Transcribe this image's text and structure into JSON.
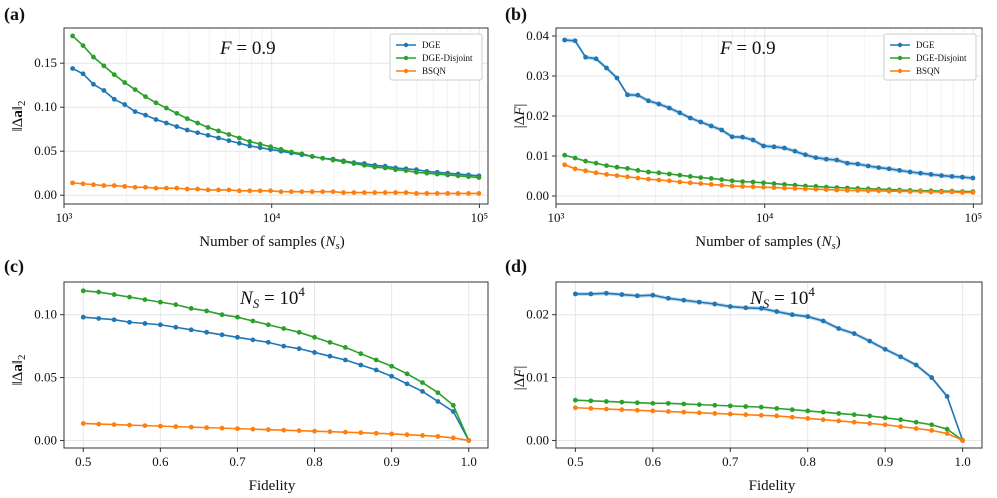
{
  "colors": {
    "DGE": "#1f77b4",
    "DGE-Disjoint": "#2ca02c",
    "BSQN": "#ff7f0e",
    "grid": "#e6e6e6",
    "band": "#aecde8"
  },
  "chart_data": [
    {
      "panel": "(a)",
      "type": "line",
      "annotation": "F = 0.9",
      "xlabel": "Number of samples (N_s)",
      "ylabel": "‖Δa‖₂",
      "xscale": "log",
      "xlim": [
        1000,
        110000
      ],
      "ylim": [
        -0.01,
        0.19
      ],
      "xticks": [
        {
          "v": 1000,
          "t": "10³"
        },
        {
          "v": 10000,
          "t": "10⁴"
        },
        {
          "v": 100000,
          "t": "10⁵"
        }
      ],
      "yticks": [
        {
          "v": 0,
          "t": "0.00"
        },
        {
          "v": 0.05,
          "t": "0.05"
        },
        {
          "v": 0.1,
          "t": "0.10"
        },
        {
          "v": 0.15,
          "t": "0.15"
        }
      ],
      "legend": "top-right",
      "grid": true,
      "x": [
        1100,
        1235,
        1386,
        1556,
        1746,
        1960,
        2200,
        2469,
        2772,
        3111,
        3492,
        3920,
        4399,
        4938,
        5543,
        6222,
        6983,
        7838,
        8798,
        9875,
        11084,
        12441,
        13964,
        15674,
        17593,
        19747,
        22164,
        24878,
        27924,
        31343,
        35180,
        39487,
        44322,
        49748,
        55839,
        62675,
        70349,
        78962,
        88630,
        99480
      ],
      "series": [
        {
          "name": "DGE",
          "values": [
            0.144,
            0.138,
            0.126,
            0.119,
            0.109,
            0.103,
            0.095,
            0.091,
            0.086,
            0.082,
            0.078,
            0.074,
            0.071,
            0.068,
            0.065,
            0.062,
            0.059,
            0.056,
            0.054,
            0.052,
            0.05,
            0.048,
            0.046,
            0.044,
            0.042,
            0.041,
            0.039,
            0.037,
            0.036,
            0.034,
            0.033,
            0.031,
            0.03,
            0.029,
            0.027,
            0.026,
            0.025,
            0.024,
            0.023,
            0.022
          ]
        },
        {
          "name": "DGE-Disjoint",
          "values": [
            0.181,
            0.17,
            0.157,
            0.147,
            0.137,
            0.128,
            0.12,
            0.112,
            0.105,
            0.099,
            0.093,
            0.087,
            0.082,
            0.077,
            0.073,
            0.069,
            0.065,
            0.061,
            0.058,
            0.055,
            0.052,
            0.049,
            0.047,
            0.044,
            0.042,
            0.04,
            0.038,
            0.036,
            0.034,
            0.032,
            0.031,
            0.029,
            0.028,
            0.026,
            0.025,
            0.024,
            0.023,
            0.022,
            0.021,
            0.02
          ]
        },
        {
          "name": "BSQN",
          "values": [
            0.014,
            0.013,
            0.012,
            0.011,
            0.011,
            0.01,
            0.009,
            0.009,
            0.008,
            0.008,
            0.008,
            0.007,
            0.007,
            0.006,
            0.006,
            0.006,
            0.005,
            0.005,
            0.005,
            0.005,
            0.004,
            0.004,
            0.004,
            0.004,
            0.004,
            0.004,
            0.003,
            0.003,
            0.003,
            0.003,
            0.003,
            0.003,
            0.003,
            0.002,
            0.002,
            0.002,
            0.002,
            0.002,
            0.002,
            0.002
          ]
        }
      ]
    },
    {
      "panel": "(b)",
      "type": "line",
      "annotation": "F = 0.9",
      "xlabel": "Number of samples (N_s)",
      "ylabel": "|ΔF|",
      "xscale": "log",
      "xlim": [
        1000,
        110000
      ],
      "ylim": [
        -0.002,
        0.042
      ],
      "xticks": [
        {
          "v": 1000,
          "t": "10³"
        },
        {
          "v": 10000,
          "t": "10⁴"
        },
        {
          "v": 100000,
          "t": "10⁵"
        }
      ],
      "yticks": [
        {
          "v": 0,
          "t": "0.00"
        },
        {
          "v": 0.01,
          "t": "0.01"
        },
        {
          "v": 0.02,
          "t": "0.02"
        },
        {
          "v": 0.03,
          "t": "0.03"
        },
        {
          "v": 0.04,
          "t": "0.04"
        }
      ],
      "legend": "top-right",
      "grid": true,
      "x": [
        1100,
        1235,
        1386,
        1556,
        1746,
        1960,
        2200,
        2469,
        2772,
        3111,
        3492,
        3920,
        4399,
        4938,
        5543,
        6222,
        6983,
        7838,
        8798,
        9875,
        11084,
        12441,
        13964,
        15674,
        17593,
        19747,
        22164,
        24878,
        27924,
        31343,
        35180,
        39487,
        44322,
        49748,
        55839,
        62675,
        70349,
        78962,
        88630,
        99480
      ],
      "series": [
        {
          "name": "DGE",
          "band": true,
          "values": [
            0.039,
            0.0388,
            0.0347,
            0.0343,
            0.032,
            0.0295,
            0.0253,
            0.0252,
            0.0238,
            0.023,
            0.022,
            0.0208,
            0.0195,
            0.0185,
            0.0175,
            0.0165,
            0.0148,
            0.0147,
            0.014,
            0.0125,
            0.0123,
            0.012,
            0.0112,
            0.0103,
            0.0096,
            0.0092,
            0.009,
            0.0082,
            0.008,
            0.0075,
            0.0071,
            0.0068,
            0.0064,
            0.006,
            0.0057,
            0.0054,
            0.0051,
            0.0049,
            0.0047,
            0.0045
          ]
        },
        {
          "name": "DGE-Disjoint",
          "values": [
            0.0102,
            0.0095,
            0.0087,
            0.0082,
            0.0076,
            0.0072,
            0.0069,
            0.0064,
            0.006,
            0.0058,
            0.0055,
            0.0052,
            0.0049,
            0.0046,
            0.0044,
            0.0041,
            0.0038,
            0.0036,
            0.0035,
            0.0033,
            0.0031,
            0.0029,
            0.0027,
            0.0025,
            0.0024,
            0.0022,
            0.0021,
            0.002,
            0.0019,
            0.0018,
            0.0017,
            0.0016,
            0.0015,
            0.0014,
            0.0013,
            0.0013,
            0.0012,
            0.0012,
            0.0011,
            0.0011
          ]
        },
        {
          "name": "BSQN",
          "values": [
            0.0078,
            0.0068,
            0.0063,
            0.0058,
            0.0054,
            0.0051,
            0.0048,
            0.0045,
            0.0042,
            0.004,
            0.0038,
            0.0035,
            0.0033,
            0.0031,
            0.0029,
            0.0027,
            0.0025,
            0.0024,
            0.0023,
            0.0022,
            0.0021,
            0.002,
            0.0019,
            0.0018,
            0.0017,
            0.0016,
            0.0015,
            0.0014,
            0.0014,
            0.0013,
            0.0013,
            0.0012,
            0.0012,
            0.0011,
            0.0011,
            0.001,
            0.001,
            0.001,
            0.0009,
            0.0009
          ]
        }
      ]
    },
    {
      "panel": "(c)",
      "type": "line",
      "annotation": "N_S = 10^4",
      "xlabel": "Fidelity",
      "ylabel": "‖Δa‖₂",
      "xscale": "linear",
      "xlim": [
        0.475,
        1.025
      ],
      "ylim": [
        -0.006,
        0.126
      ],
      "xticks": [
        {
          "v": 0.5,
          "t": "0.5"
        },
        {
          "v": 0.6,
          "t": "0.6"
        },
        {
          "v": 0.7,
          "t": "0.7"
        },
        {
          "v": 0.8,
          "t": "0.8"
        },
        {
          "v": 0.9,
          "t": "0.9"
        },
        {
          "v": 1.0,
          "t": "1.0"
        }
      ],
      "yticks": [
        {
          "v": 0,
          "t": "0.00"
        },
        {
          "v": 0.05,
          "t": "0.05"
        },
        {
          "v": 0.1,
          "t": "0.10"
        }
      ],
      "grid": true,
      "x": [
        0.5,
        0.52,
        0.54,
        0.56,
        0.58,
        0.6,
        0.62,
        0.64,
        0.66,
        0.68,
        0.7,
        0.72,
        0.74,
        0.76,
        0.78,
        0.8,
        0.82,
        0.84,
        0.86,
        0.88,
        0.9,
        0.92,
        0.94,
        0.96,
        0.98,
        1.0
      ],
      "series": [
        {
          "name": "DGE",
          "values": [
            0.098,
            0.097,
            0.096,
            0.094,
            0.093,
            0.092,
            0.09,
            0.088,
            0.086,
            0.084,
            0.082,
            0.08,
            0.078,
            0.075,
            0.073,
            0.07,
            0.067,
            0.064,
            0.06,
            0.056,
            0.051,
            0.045,
            0.039,
            0.031,
            0.023,
            0.0
          ]
        },
        {
          "name": "DGE-Disjoint",
          "values": [
            0.119,
            0.118,
            0.116,
            0.114,
            0.112,
            0.11,
            0.108,
            0.105,
            0.103,
            0.1,
            0.098,
            0.095,
            0.092,
            0.089,
            0.086,
            0.082,
            0.078,
            0.074,
            0.069,
            0.064,
            0.059,
            0.053,
            0.046,
            0.038,
            0.028,
            0.0
          ]
        },
        {
          "name": "BSQN",
          "values": [
            0.0135,
            0.013,
            0.0126,
            0.0122,
            0.0118,
            0.0114,
            0.011,
            0.0106,
            0.0102,
            0.0098,
            0.0094,
            0.009,
            0.0086,
            0.0082,
            0.0078,
            0.0074,
            0.007,
            0.0066,
            0.0062,
            0.0057,
            0.0052,
            0.0046,
            0.004,
            0.0032,
            0.002,
            0.0
          ]
        }
      ]
    },
    {
      "panel": "(d)",
      "type": "line",
      "annotation": "N_S = 10^4",
      "xlabel": "Fidelity",
      "ylabel": "|ΔF|",
      "xscale": "linear",
      "xlim": [
        0.475,
        1.025
      ],
      "ylim": [
        -0.0012,
        0.0252
      ],
      "xticks": [
        {
          "v": 0.5,
          "t": "0.5"
        },
        {
          "v": 0.6,
          "t": "0.6"
        },
        {
          "v": 0.7,
          "t": "0.7"
        },
        {
          "v": 0.8,
          "t": "0.8"
        },
        {
          "v": 0.9,
          "t": "0.9"
        },
        {
          "v": 1.0,
          "t": "1.0"
        }
      ],
      "yticks": [
        {
          "v": 0,
          "t": "0.00"
        },
        {
          "v": 0.01,
          "t": "0.01"
        },
        {
          "v": 0.02,
          "t": "0.02"
        }
      ],
      "grid": true,
      "x": [
        0.5,
        0.52,
        0.54,
        0.56,
        0.58,
        0.6,
        0.62,
        0.64,
        0.66,
        0.68,
        0.7,
        0.72,
        0.74,
        0.76,
        0.78,
        0.8,
        0.82,
        0.84,
        0.86,
        0.88,
        0.9,
        0.92,
        0.94,
        0.96,
        0.98,
        1.0
      ],
      "series": [
        {
          "name": "DGE",
          "band": true,
          "values": [
            0.0233,
            0.0233,
            0.0234,
            0.0232,
            0.023,
            0.0231,
            0.0226,
            0.0223,
            0.022,
            0.0217,
            0.0213,
            0.0211,
            0.021,
            0.0205,
            0.02,
            0.0197,
            0.019,
            0.0178,
            0.017,
            0.0158,
            0.0145,
            0.0133,
            0.012,
            0.01,
            0.007,
            0.0
          ]
        },
        {
          "name": "DGE-Disjoint",
          "values": [
            0.0064,
            0.0063,
            0.0062,
            0.0061,
            0.006,
            0.0059,
            0.0059,
            0.0058,
            0.0057,
            0.0056,
            0.0055,
            0.0054,
            0.0053,
            0.0051,
            0.0049,
            0.0047,
            0.0045,
            0.0043,
            0.0041,
            0.0039,
            0.0036,
            0.0033,
            0.0029,
            0.0025,
            0.0018,
            0.0
          ]
        },
        {
          "name": "BSQN",
          "values": [
            0.0052,
            0.0051,
            0.005,
            0.0049,
            0.0048,
            0.0047,
            0.0046,
            0.0045,
            0.0044,
            0.0043,
            0.0042,
            0.0041,
            0.004,
            0.0039,
            0.0037,
            0.0035,
            0.0033,
            0.0031,
            0.0029,
            0.0027,
            0.0025,
            0.0022,
            0.0019,
            0.0016,
            0.0011,
            0.0
          ]
        }
      ]
    }
  ]
}
